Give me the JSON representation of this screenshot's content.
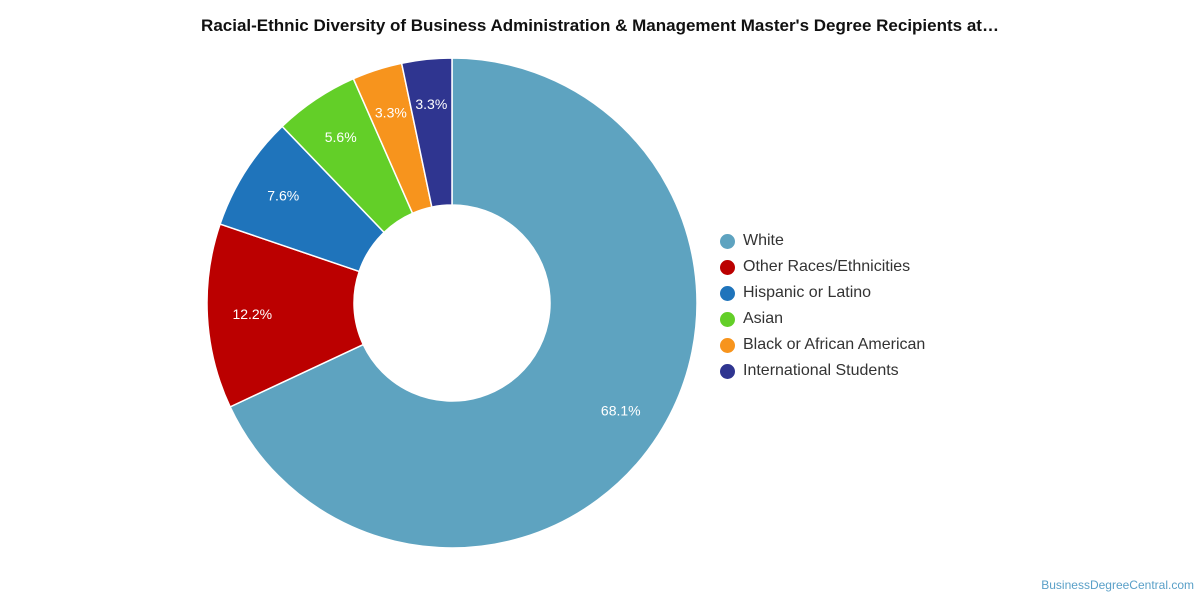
{
  "chart_data": {
    "type": "pie",
    "title": "Racial-Ethnic Diversity of Business Administration & Management Master's Degree Recipients at…",
    "donut": true,
    "categories": [
      "White",
      "Other Races/Ethnicities",
      "Hispanic or Latino",
      "Asian",
      "Black or African American",
      "International Students"
    ],
    "values": [
      68.1,
      12.2,
      7.6,
      5.6,
      3.3,
      3.3
    ],
    "value_labels": [
      "68.1%",
      "12.2%",
      "7.6%",
      "5.6%",
      "3.3%",
      "3.3%"
    ],
    "colors": [
      "#5ea3c0",
      "#bb0000",
      "#1f74bb",
      "#63cf28",
      "#f7941d",
      "#2f3590"
    ],
    "legend_position": "right"
  },
  "credit": "BusinessDegreeCentral.com"
}
